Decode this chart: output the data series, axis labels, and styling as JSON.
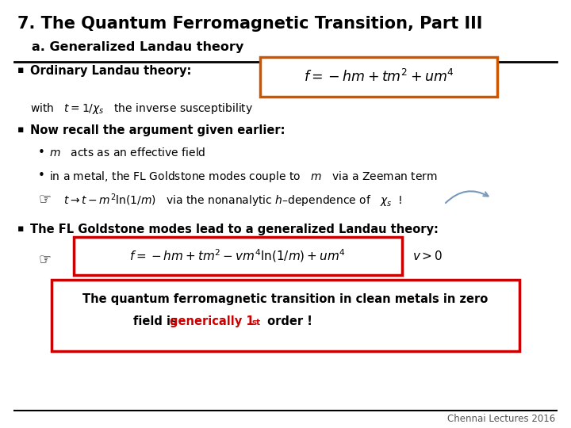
{
  "title": "7. The Quantum Ferromagnetic Transition, Part III",
  "subtitle": "a. Generalized Landau theory",
  "bg_color": "#ffffff",
  "title_color": "#000000",
  "subtitle_color": "#000000",
  "footer": "Chennai Lectures 2016",
  "bullet1": "Ordinary Landau theory:",
  "eq1_latex": "$f = -hm+tm^{2}+um^{4}$",
  "eq1_box_color": "#cc5500",
  "with_text_pre": "with   $t=1/\\chi_s$   the inverse susceptibility",
  "bullet2": "Now recall the argument given earlier:",
  "sub1": "$m$   acts as an effective field",
  "sub2": "in a metal, the FL Goldstone modes couple to   $m$   via a Zeeman term",
  "finger_eq": "$t \\rightarrow t-m^{2}\\ln(1/m)$   via the nonanalytic $h$–dependence of   $\\chi_{s}$  !",
  "bullet3": "The FL Goldstone modes lead to a generalized Landau theory:",
  "eq2_latex": "$f = -hm+tm^{2}-vm^{4}\\ln(1/m)+um^{4}$",
  "eq2_extra": "$v>0$",
  "eq2_box_color": "#cc0000",
  "box_line1": "The quantum ferromagnetic transition in clean metals in zero",
  "box_line2a": "field is ",
  "box_line2b": "generically 1",
  "box_line2c": "st",
  "box_line2d": " order !",
  "final_box_color": "#cc0000",
  "red_color": "#cc0000"
}
